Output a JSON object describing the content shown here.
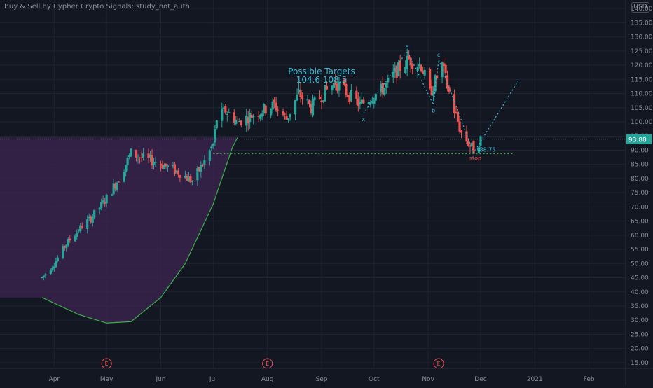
{
  "study": {
    "title": "Buy & Sell by Cypher Crypto Signals: study_not_auth"
  },
  "price_axis": {
    "currency": "USD",
    "last_price_label": "93.88",
    "ticks": [
      "15.00",
      "20.00",
      "25.00",
      "30.00",
      "35.00",
      "40.00",
      "45.00",
      "50.00",
      "55.00",
      "60.00",
      "65.00",
      "70.00",
      "75.00",
      "80.00",
      "85.00",
      "90.00",
      "95.00",
      "100.00",
      "105.00",
      "110.00",
      "115.00",
      "120.00",
      "125.00",
      "130.00",
      "135.00",
      "140.00"
    ]
  },
  "time_axis": {
    "labels": [
      "Apr",
      "May",
      "Jun",
      "Jul",
      "Aug",
      "Sep",
      "Oct",
      "Nov",
      "Dec",
      "2021",
      "Feb"
    ]
  },
  "annotations": {
    "targets_title": "Possible Targets",
    "targets_values": "104.6  108.5",
    "stop_price": "88.75",
    "stop_label": "stop",
    "earnings_marker": "E",
    "pattern_points": [
      "x",
      "a",
      "b",
      "c",
      "d"
    ]
  },
  "colors": {
    "background": "#131722",
    "grid": "#1f2330",
    "up": "#26a69a",
    "down": "#ef5350",
    "pattern": "#3bbad4",
    "cup_fill": "#3d2452",
    "cup_line": "#3ab04a",
    "stop_line": "#3ab04a",
    "stop_text": "#ef5350",
    "price_label_bg": "#26a69a",
    "axis_text": "#8a8f9c",
    "earnings": "#ef5350"
  },
  "chart_data": {
    "type": "candlestick",
    "title": "",
    "xlabel": "",
    "ylabel": "",
    "ylim": [
      13,
      143
    ],
    "y_scale": "linear",
    "grid": true,
    "last_price": 93.88,
    "x_months": [
      "2020-04",
      "2020-05",
      "2020-06",
      "2020-07",
      "2020-08",
      "2020-09",
      "2020-10",
      "2020-11",
      "2020-12",
      "2021-01",
      "2021-02"
    ],
    "close_path": [
      [
        "2020-03-25",
        45
      ],
      [
        "2020-04-01",
        50
      ],
      [
        "2020-04-08",
        57
      ],
      [
        "2020-04-15",
        62
      ],
      [
        "2020-04-22",
        66
      ],
      [
        "2020-05-01",
        73
      ],
      [
        "2020-05-08",
        80
      ],
      [
        "2020-05-15",
        89
      ],
      [
        "2020-05-22",
        87
      ],
      [
        "2020-05-29",
        86
      ],
      [
        "2020-06-05",
        84
      ],
      [
        "2020-06-12",
        82
      ],
      [
        "2020-06-19",
        79
      ],
      [
        "2020-06-26",
        86
      ],
      [
        "2020-07-01",
        92
      ],
      [
        "2020-07-03",
        101
      ],
      [
        "2020-07-08",
        104
      ],
      [
        "2020-07-15",
        100
      ],
      [
        "2020-07-22",
        102
      ],
      [
        "2020-07-29",
        104
      ],
      [
        "2020-08-05",
        106
      ],
      [
        "2020-08-12",
        101
      ],
      [
        "2020-08-19",
        110
      ],
      [
        "2020-08-26",
        105
      ],
      [
        "2020-09-02",
        110
      ],
      [
        "2020-09-09",
        114
      ],
      [
        "2020-09-16",
        110
      ],
      [
        "2020-09-23",
        106
      ],
      [
        "2020-09-30",
        109
      ],
      [
        "2020-10-07",
        112
      ],
      [
        "2020-10-14",
        118
      ],
      [
        "2020-10-21",
        122
      ],
      [
        "2020-10-28",
        120
      ],
      [
        "2020-11-02",
        110
      ],
      [
        "2020-11-09",
        120
      ],
      [
        "2020-11-13",
        110
      ],
      [
        "2020-11-20",
        96
      ],
      [
        "2020-11-27",
        90
      ],
      [
        "2020-12-01",
        93.88
      ]
    ],
    "cup_curve": [
      [
        "2020-03-25",
        38
      ],
      [
        "2020-04-15",
        32
      ],
      [
        "2020-05-01",
        29
      ],
      [
        "2020-05-15",
        29.5
      ],
      [
        "2020-06-01",
        38
      ],
      [
        "2020-06-15",
        50
      ],
      [
        "2020-07-01",
        71
      ],
      [
        "2020-07-12",
        91
      ],
      [
        "2020-07-15",
        94.5
      ]
    ],
    "harmonic_pattern": [
      {
        "label": "x",
        "date": "2020-09-25",
        "price": 103
      },
      {
        "label": "a",
        "date": "2020-10-20",
        "price": 125
      },
      {
        "label": "b",
        "date": "2020-11-04",
        "price": 106
      },
      {
        "label": "c",
        "date": "2020-11-07",
        "price": 122
      },
      {
        "label": "d",
        "date": "2020-11-27",
        "price": 88.9
      }
    ],
    "projection": [
      [
        "2020-11-27",
        88.9
      ],
      [
        "2020-12-02",
        94
      ],
      [
        "2020-12-23",
        115
      ]
    ],
    "targets": [
      104.6,
      108.5
    ],
    "stop": 88.75,
    "support_level": 94.5,
    "earnings_dates": [
      "2020-05-01",
      "2020-08-01",
      "2020-11-07"
    ]
  }
}
